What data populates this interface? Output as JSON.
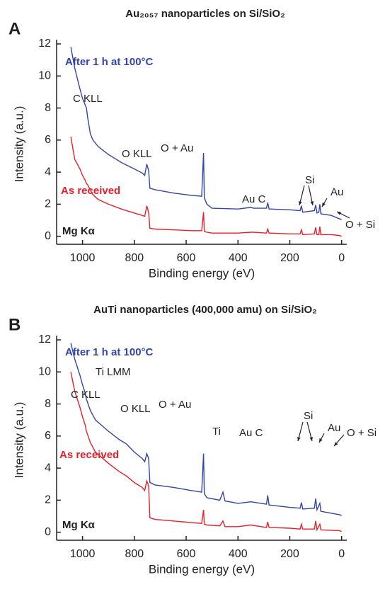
{
  "chart_data": [
    {
      "type": "line",
      "panel": "A",
      "title": "Au₂₀₅₇ nanoparticles on Si/SiO₂",
      "x_label": "Binding energy (eV)",
      "y_label": "Intensity (a.u.)",
      "xlim": [
        1100,
        -20
      ],
      "ylim": [
        -0.5,
        12
      ],
      "xticks": [
        1000,
        800,
        600,
        400,
        200,
        0
      ],
      "yticks": [
        0,
        2,
        4,
        6,
        8,
        10,
        12
      ],
      "x": [
        1045,
        1030,
        1010,
        1000,
        990,
        985,
        980,
        970,
        960,
        940,
        900,
        850,
        800,
        770,
        760,
        752,
        745,
        740,
        720,
        650,
        580,
        540,
        533,
        530,
        520,
        500,
        400,
        350,
        340,
        290,
        285,
        280,
        200,
        160,
        155,
        150,
        105,
        100,
        95,
        88,
        84,
        80,
        40,
        10,
        0
      ],
      "series": [
        {
          "name": "After 1 h at 100°C",
          "color": "#3344aa",
          "values": [
            11.8,
            10.5,
            9.2,
            8.6,
            8.2,
            8.0,
            7.4,
            6.4,
            6.0,
            5.6,
            5.1,
            4.6,
            4.2,
            3.95,
            3.8,
            4.5,
            4.1,
            3.0,
            2.9,
            2.7,
            2.55,
            2.5,
            5.2,
            2.4,
            2.0,
            1.75,
            1.7,
            1.8,
            1.75,
            1.75,
            2.1,
            1.7,
            1.65,
            1.6,
            1.9,
            1.5,
            1.6,
            1.95,
            1.45,
            1.5,
            2.0,
            1.4,
            1.3,
            1.1,
            1.05
          ]
        },
        {
          "name": "As received",
          "color": "#e8202a",
          "values": [
            6.2,
            4.8,
            4.2,
            3.8,
            3.5,
            3.3,
            3.2,
            2.9,
            2.6,
            2.3,
            2.0,
            1.7,
            1.45,
            1.3,
            1.25,
            1.9,
            1.5,
            0.5,
            0.45,
            0.4,
            0.35,
            0.35,
            1.5,
            0.3,
            0.25,
            0.2,
            0.2,
            0.25,
            0.25,
            0.2,
            0.45,
            0.2,
            0.15,
            0.15,
            0.4,
            0.1,
            0.15,
            0.55,
            0.1,
            0.1,
            0.6,
            0.1,
            0.1,
            0.05,
            0.0
          ]
        }
      ],
      "annotations": [
        "C KLL",
        "O KLL",
        "O + Au",
        "Au C",
        "Si",
        "Au",
        "O + Si",
        "Mg Kα"
      ]
    },
    {
      "type": "line",
      "panel": "B",
      "title": "AuTi nanoparticles (400,000 amu) on Si/SiO₂",
      "x_label": "Binding energy (eV)",
      "y_label": "Intensity (a.u.)",
      "xlim": [
        1100,
        -20
      ],
      "ylim": [
        -0.5,
        12
      ],
      "xticks": [
        1000,
        800,
        600,
        400,
        200,
        0
      ],
      "yticks": [
        0,
        2,
        4,
        6,
        8,
        10,
        12
      ],
      "x": [
        1045,
        1030,
        1010,
        1000,
        990,
        985,
        970,
        950,
        900,
        860,
        830,
        800,
        770,
        760,
        752,
        745,
        740,
        720,
        650,
        580,
        540,
        533,
        530,
        520,
        470,
        458,
        450,
        400,
        350,
        290,
        285,
        280,
        200,
        160,
        155,
        150,
        105,
        100,
        95,
        84,
        80,
        10,
        0
      ],
      "series": [
        {
          "name": "After 1 h at 100°C",
          "color": "#3344aa",
          "values": [
            11.8,
            10.8,
            9.8,
            9.2,
            8.7,
            8.3,
            7.6,
            7.0,
            6.3,
            5.8,
            5.5,
            5.0,
            4.6,
            4.4,
            4.9,
            4.6,
            3.1,
            2.95,
            2.8,
            2.6,
            2.5,
            4.9,
            2.4,
            2.15,
            2.0,
            2.5,
            1.95,
            1.8,
            1.9,
            1.75,
            2.3,
            1.7,
            1.55,
            1.5,
            1.85,
            1.45,
            1.5,
            2.1,
            1.4,
            1.8,
            1.3,
            1.1,
            1.05
          ]
        },
        {
          "name": "As received",
          "color": "#e8202a",
          "values": [
            10.0,
            8.8,
            7.8,
            7.2,
            6.7,
            6.3,
            5.6,
            5.0,
            4.3,
            3.8,
            3.5,
            3.1,
            2.8,
            2.6,
            3.2,
            2.9,
            0.9,
            0.8,
            0.7,
            0.6,
            0.55,
            1.4,
            0.5,
            0.45,
            0.4,
            0.7,
            0.35,
            0.35,
            0.45,
            0.3,
            0.65,
            0.3,
            0.25,
            0.2,
            0.5,
            0.2,
            0.2,
            0.7,
            0.15,
            0.5,
            0.15,
            0.1,
            0.05
          ]
        }
      ],
      "annotations": [
        "C KLL",
        "Ti LMM",
        "O KLL",
        "O + Au",
        "Ti",
        "Au C",
        "Si",
        "Au",
        "O + Si",
        "Mg Kα"
      ]
    }
  ]
}
